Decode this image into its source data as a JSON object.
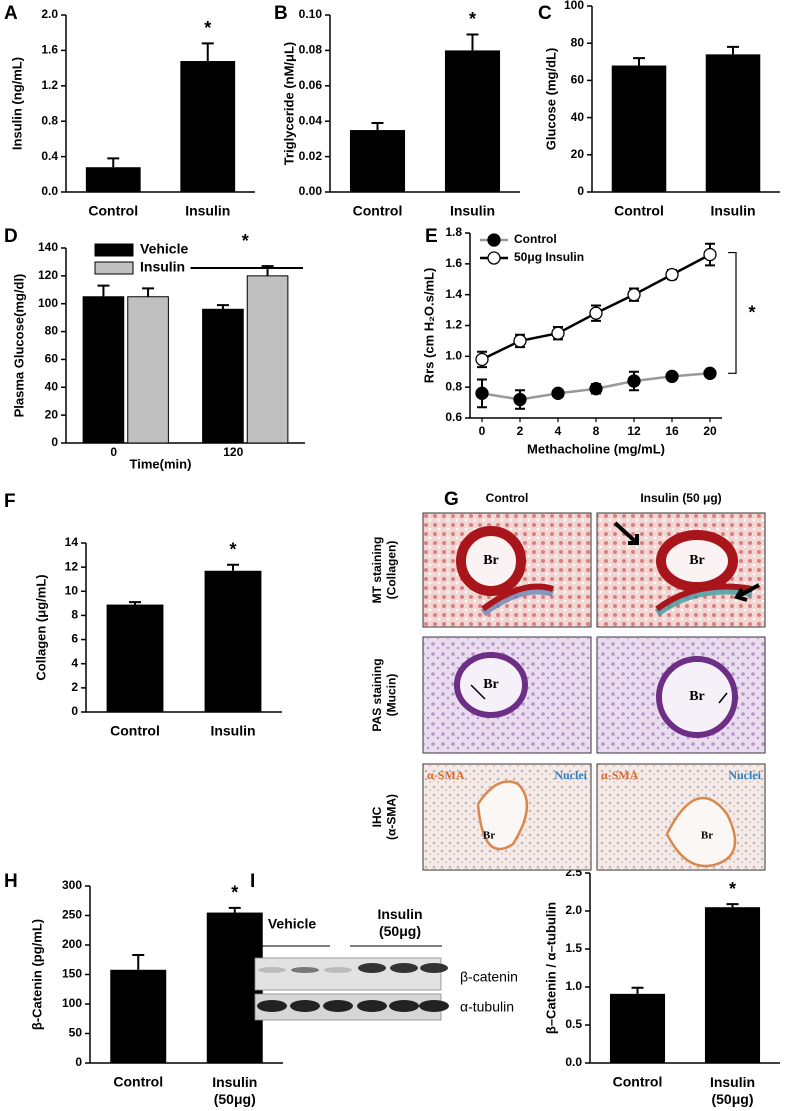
{
  "chart_data": [
    {
      "panel": "A",
      "type": "bar",
      "ylabel": "Insulin (ng/mL)",
      "categories": [
        "Control",
        "Insulin"
      ],
      "values": [
        0.28,
        1.48
      ],
      "errors": [
        0.1,
        0.2
      ],
      "color": "#000000",
      "ylim": [
        0,
        2
      ],
      "yticks": [
        {
          "value": 0,
          "label": "0.0"
        },
        0.4,
        0.8,
        1.2,
        1.6,
        {
          "value": 2,
          "label": "2.0"
        }
      ],
      "annotation": "*"
    },
    {
      "panel": "B",
      "type": "bar",
      "ylabel": "Triglyceride (nM/μL)",
      "categories": [
        "Control",
        "Insulin"
      ],
      "values": [
        0.035,
        0.08
      ],
      "errors": [
        0.004,
        0.009
      ],
      "color": "#000000",
      "ylim": [
        0,
        0.1
      ],
      "yticks": [
        {
          "value": 0,
          "label": "0.00"
        },
        0.02,
        0.04,
        0.06,
        0.08,
        {
          "value": 0.1,
          "label": "0.10"
        }
      ],
      "annotation": "*"
    },
    {
      "panel": "C",
      "type": "bar",
      "ylabel": "Glucose (mg/dL)",
      "categories": [
        "Control",
        "Insulin"
      ],
      "values": [
        68,
        74
      ],
      "errors": [
        4,
        4
      ],
      "color": "#000000",
      "ylim": [
        0,
        100
      ],
      "yticks": [
        0,
        20,
        40,
        60,
        80,
        100
      ]
    },
    {
      "panel": "D",
      "type": "grouped_bar",
      "ylabel": "Plasma Glucose(mg/dl)",
      "xlabel": "Time(min)",
      "categories": [
        "0",
        "120"
      ],
      "series": [
        {
          "name": "Vehicle",
          "color": "#000000",
          "values": [
            105,
            96
          ],
          "errors": [
            8,
            3
          ]
        },
        {
          "name": "Insulin",
          "color": "#c0c0c0",
          "values": [
            105,
            120
          ],
          "errors": [
            6,
            7
          ]
        }
      ],
      "ylim": [
        0,
        140
      ],
      "yticks": [
        0,
        20,
        40,
        60,
        80,
        100,
        120,
        140
      ],
      "annotation": "*"
    },
    {
      "panel": "E",
      "type": "line",
      "ylabel": "Rrs (cm H₂O.s/mL)",
      "xlabel": "Methacholine (mg/mL)",
      "categories": [
        "0",
        "2",
        "4",
        "8",
        "12",
        "16",
        "20"
      ],
      "series": [
        {
          "name": "Control",
          "color": "#999999",
          "marker_color": "#000000",
          "values": [
            0.76,
            0.72,
            0.76,
            0.79,
            0.84,
            0.87,
            0.89
          ],
          "errors": [
            0.09,
            0.06,
            0.02,
            0.03,
            0.06,
            0.02,
            0.01
          ]
        },
        {
          "name": "50μg Insulin",
          "color": "#000000",
          "marker_color": "#ffffff",
          "values": [
            0.98,
            1.1,
            1.15,
            1.28,
            1.4,
            1.53,
            1.66
          ],
          "errors": [
            0.05,
            0.04,
            0.04,
            0.05,
            0.04,
            0.03,
            0.07
          ]
        }
      ],
      "ylim": [
        0.6,
        1.8
      ],
      "yticks": [
        0.6,
        0.8,
        {
          "value": 1,
          "label": "1.0"
        },
        1.2,
        1.4,
        1.6,
        1.8
      ],
      "annotation": "*"
    },
    {
      "panel": "F",
      "type": "bar",
      "ylabel": "Collagen (μg/mL)",
      "categories": [
        "Control",
        "Insulin"
      ],
      "values": [
        8.9,
        11.7
      ],
      "errors": [
        0.2,
        0.5
      ],
      "color": "#000000",
      "ylim": [
        0,
        14
      ],
      "yticks": [
        0,
        2,
        4,
        6,
        8,
        10,
        12,
        14
      ],
      "annotation": "*"
    },
    {
      "panel": "H",
      "type": "bar",
      "ylabel": "β-Catenin  (pg/mL)",
      "categories": [
        "Control",
        "Insulin\n(50μg)"
      ],
      "values": [
        158,
        255
      ],
      "errors": [
        25,
        8
      ],
      "color": "#000000",
      "ylim": [
        0,
        300
      ],
      "yticks": [
        0,
        50,
        100,
        150,
        200,
        250,
        300
      ],
      "annotation": "*"
    },
    {
      "type": "bar",
      "ylabel": "β–Catenin / α–tubulin",
      "categories": [
        "Control",
        "Insulin\n(50μg)"
      ],
      "values": [
        0.91,
        2.05
      ],
      "errors": [
        0.08,
        0.04
      ],
      "color": "#000000",
      "ylim": [
        0,
        2.5
      ],
      "yticks": [
        {
          "value": 0,
          "label": "0.0"
        },
        0.5,
        {
          "value": 1,
          "label": "1.0"
        },
        1.5,
        {
          "value": 2,
          "label": "2.0"
        },
        2.5
      ],
      "annotation": "*"
    }
  ],
  "panel_g": {
    "panel": "G",
    "columns": [
      "Control",
      "Insulin (50 μg)"
    ],
    "rows": [
      "MT staining\n(Collagen)",
      "PAS staining\n(Mucin)",
      "IHC\n(α-SMA)"
    ],
    "bronchus": "Br",
    "stain": "α-SMA",
    "nuclei": "Nuclei"
  },
  "panel_i_blot": {
    "panel": "I",
    "groups": [
      "Vehicle",
      "Insulin\n(50μg)"
    ],
    "bands": [
      "β-catenin",
      "α-tubulin"
    ]
  }
}
